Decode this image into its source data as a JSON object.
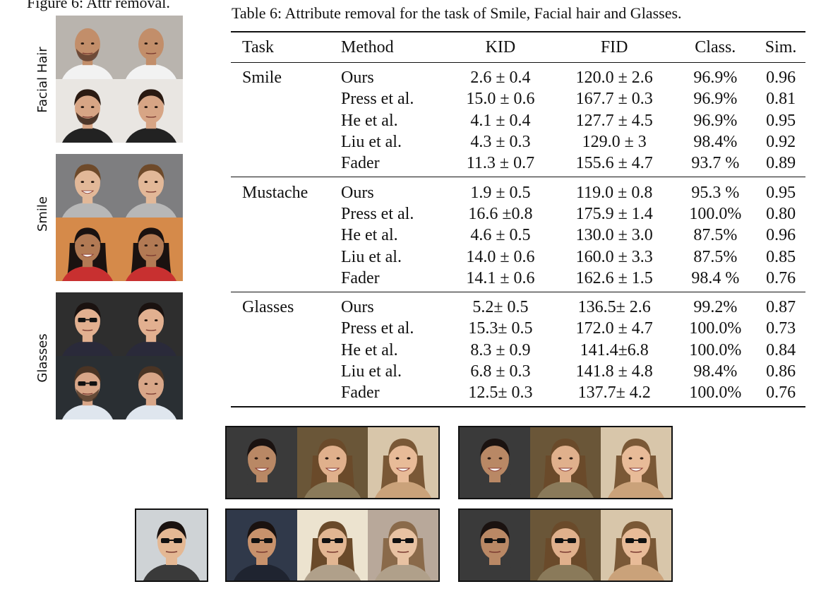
{
  "figure_caption": "Figure 6: Attr removal.",
  "table_caption": "Table 6: Attribute removal for the task of Smile, Facial hair and Glasses.",
  "side_labels": {
    "facial_hair": "Facial Hair",
    "smile": "Smile",
    "glasses": "Glasses"
  },
  "table": {
    "headers": [
      "Task",
      "Method",
      "KID",
      "FID",
      "Class.",
      "Sim."
    ],
    "groups": [
      {
        "task": "Smile",
        "rows": [
          [
            "Ours",
            "2.6 ± 0.4",
            "120.0 ± 2.6",
            "96.9%",
            "0.96"
          ],
          [
            "Press et al.",
            "15.0 ± 0.6",
            "167.7 ± 0.3",
            "96.9%",
            "0.81"
          ],
          [
            "He et al.",
            "4.1 ± 0.4",
            "127.7 ± 4.5",
            "96.9%",
            "0.95"
          ],
          [
            "Liu et al.",
            "4.3 ± 0.3",
            "129.0 ± 3",
            "98.4%",
            "0.92"
          ],
          [
            "Fader",
            "11.3 ± 0.7",
            "155.6 ± 4.7",
            "93.7 %",
            "0.89"
          ]
        ]
      },
      {
        "task": "Mustache",
        "rows": [
          [
            "Ours",
            "1.9 ± 0.5",
            "119.0 ± 0.8",
            "95.3 %",
            "0.95"
          ],
          [
            "Press et al.",
            "16.6 ±0.8",
            "175.9 ± 1.4",
            "100.0%",
            "0.80"
          ],
          [
            "He et al.",
            "4.6 ± 0.5",
            "130.0 ± 3.0",
            "87.5%",
            "0.96"
          ],
          [
            "Liu et al.",
            "14.0 ± 0.6",
            "160.0 ± 3.3",
            "87.5%",
            "0.85"
          ],
          [
            "Fader",
            "14.1 ± 0.6",
            "162.6 ± 1.5",
            "98.4 %",
            "0.76"
          ]
        ]
      },
      {
        "task": "Glasses",
        "rows": [
          [
            "Ours",
            "5.2± 0.5",
            "136.5± 2.6",
            "99.2%",
            "0.87"
          ],
          [
            "Press et al.",
            "15.3± 0.5",
            "172.0 ± 4.7",
            "100.0%",
            "0.73"
          ],
          [
            "He et al.",
            "8.3 ± 0.9",
            "141.4±6.8",
            "100.0%",
            "0.84"
          ],
          [
            "Liu et al.",
            "6.8 ± 0.3",
            "141.8 ± 4.8",
            "98.4%",
            "0.86"
          ],
          [
            "Fader",
            "12.5± 0.3",
            "137.7± 4.2",
            "100.0%",
            "0.76"
          ]
        ]
      }
    ]
  },
  "colors": {
    "text": "#111111",
    "rule": "#111111"
  }
}
